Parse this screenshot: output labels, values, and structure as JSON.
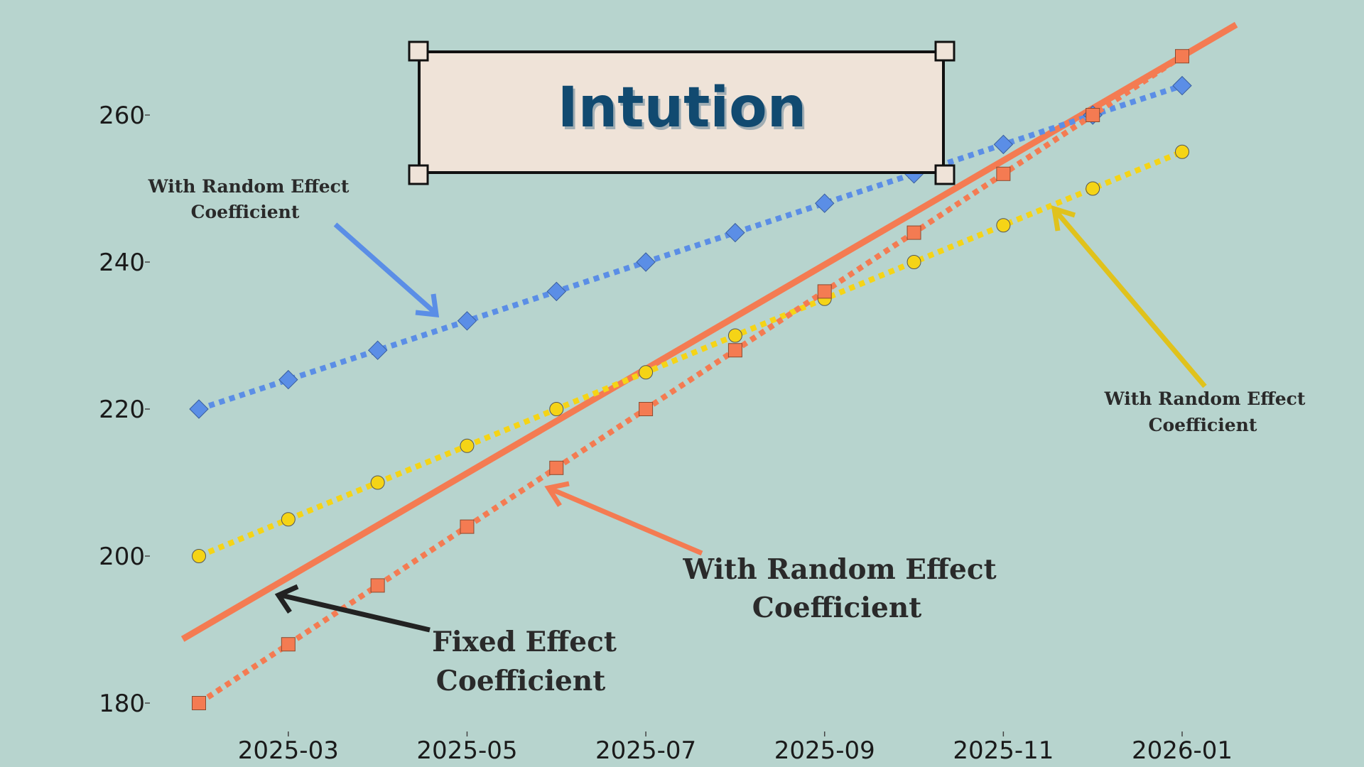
{
  "chart_data": {
    "type": "line",
    "title": "Intution",
    "x": [
      "2025-02",
      "2025-03",
      "2025-04",
      "2025-05",
      "2025-06",
      "2025-07",
      "2025-08",
      "2025-09",
      "2025-10",
      "2025-11",
      "2025-12",
      "2026-01"
    ],
    "x_ticks": [
      "2025-03",
      "2025-05",
      "2025-07",
      "2025-09",
      "2025-11",
      "2026-01"
    ],
    "y_ticks": [
      180,
      200,
      220,
      240,
      260
    ],
    "ylim": [
      178,
      270
    ],
    "grid": false,
    "series": [
      {
        "key": "blue",
        "marker": "diamond",
        "color": "#5b8ee6",
        "line_style": "dotted",
        "values": [
          220,
          224,
          228,
          232,
          236,
          240,
          244,
          248,
          252,
          256,
          260,
          264
        ]
      },
      {
        "key": "yellow",
        "marker": "circle",
        "color": "#f5d416",
        "line_style": "dotted",
        "values": [
          200,
          205,
          210,
          215,
          220,
          225,
          230,
          235,
          240,
          245,
          250,
          255
        ]
      },
      {
        "key": "orange",
        "marker": "square",
        "color": "#f47b52",
        "line_style": "dotted",
        "values": [
          180,
          188,
          196,
          204,
          212,
          220,
          228,
          236,
          244,
          252,
          260,
          268
        ]
      }
    ],
    "fixed_effect_line": {
      "color": "#f47b52",
      "from": {
        "x": "2025-02",
        "y": 190
      },
      "to": {
        "x": "2026-01",
        "y": 268
      }
    },
    "annotations": {
      "blue": {
        "lines": [
          "With Random Effect",
          "Coefficient"
        ],
        "color": "#5b8ee6"
      },
      "yellow": {
        "lines": [
          "With Random Effect",
          "Coefficient"
        ],
        "color": "#e0c21c"
      },
      "orange": {
        "lines": [
          "With Random Effect",
          "Coefficient"
        ],
        "color": "#f47b52"
      },
      "fixed": {
        "lines": [
          "Fixed Effect",
          "Coefficient"
        ],
        "color": "#222222"
      }
    }
  },
  "colors": {
    "background": "#b7d4ce",
    "title_box": "#efe3d8",
    "title_text": "#114a70"
  }
}
